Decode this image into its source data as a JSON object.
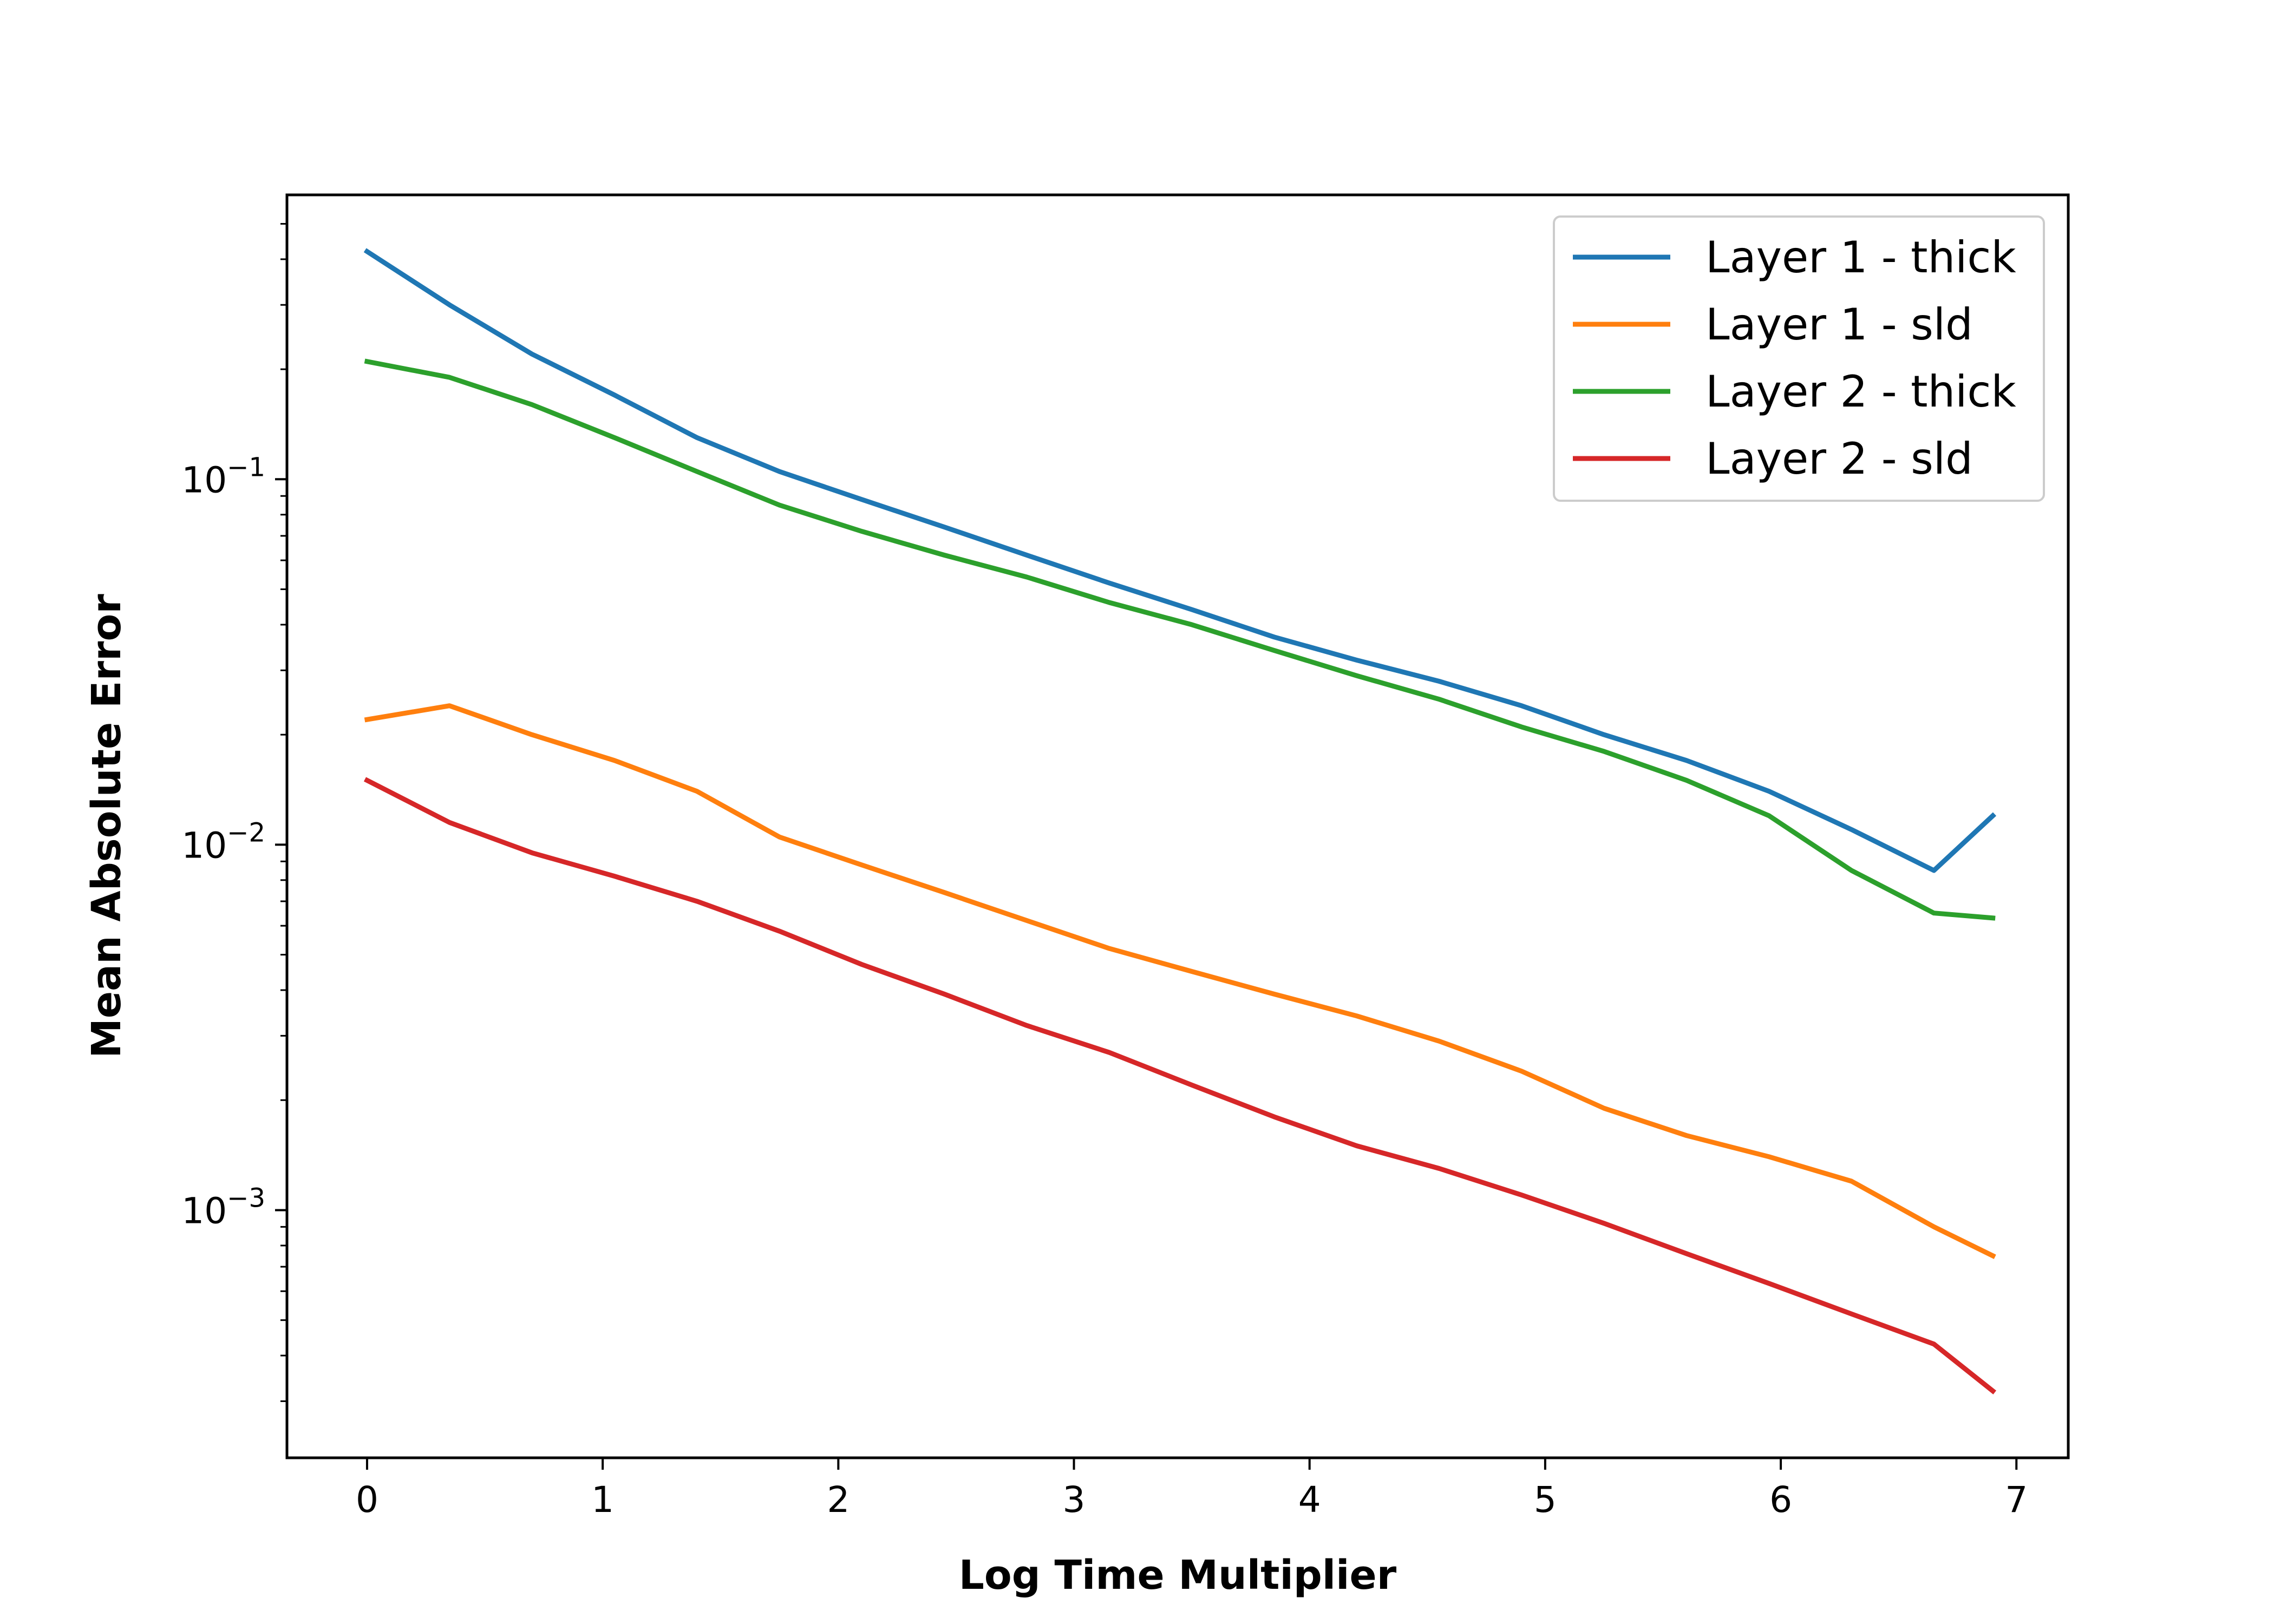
{
  "chart_data": {
    "type": "line",
    "title": "",
    "xlabel": "Log Time Multiplier",
    "ylabel": "Mean Absolute Error",
    "xlim": [
      -0.34,
      7.22
    ],
    "ylim": [
      0.00021,
      0.6
    ],
    "yscale": "log",
    "x_ticks": [
      "0",
      "1",
      "2",
      "3",
      "4",
      "5",
      "6",
      "7"
    ],
    "y_ticks": [
      {
        "base": "10",
        "exp": "−1"
      },
      {
        "base": "10",
        "exp": "−2"
      },
      {
        "base": "10",
        "exp": "−3"
      }
    ],
    "grid": false,
    "legend_position": "top-right",
    "x": [
      0.0,
      0.35,
      0.7,
      1.05,
      1.4,
      1.75,
      2.1,
      2.45,
      2.8,
      3.15,
      3.5,
      3.85,
      4.2,
      4.55,
      4.9,
      5.25,
      5.6,
      5.95,
      6.3,
      6.65,
      6.9
    ],
    "series": [
      {
        "name": "Layer 1 - thick",
        "color": "#1f77b4",
        "values": [
          0.42,
          0.3,
          0.22,
          0.17,
          0.13,
          0.105,
          0.088,
          0.074,
          0.062,
          0.052,
          0.044,
          0.037,
          0.032,
          0.028,
          0.024,
          0.02,
          0.017,
          0.014,
          0.011,
          0.0085,
          0.012
        ]
      },
      {
        "name": "Layer 1 - sld",
        "color": "#ff7f0e",
        "values": [
          0.022,
          0.024,
          0.02,
          0.017,
          0.014,
          0.0105,
          0.0088,
          0.0074,
          0.0062,
          0.0052,
          0.0045,
          0.0039,
          0.0034,
          0.0029,
          0.0024,
          0.0019,
          0.0016,
          0.0014,
          0.0012,
          0.0009,
          0.00075
        ]
      },
      {
        "name": "Layer 2 - thick",
        "color": "#2ca02c",
        "values": [
          0.21,
          0.19,
          0.16,
          0.13,
          0.105,
          0.085,
          0.072,
          0.062,
          0.054,
          0.046,
          0.04,
          0.034,
          0.029,
          0.025,
          0.021,
          0.018,
          0.015,
          0.012,
          0.0085,
          0.0065,
          0.0063
        ]
      },
      {
        "name": "Layer 2 - sld",
        "color": "#d62728",
        "values": [
          0.015,
          0.0115,
          0.0095,
          0.0082,
          0.007,
          0.0058,
          0.0047,
          0.0039,
          0.0032,
          0.0027,
          0.0022,
          0.0018,
          0.0015,
          0.0013,
          0.0011,
          0.00092,
          0.00076,
          0.00063,
          0.00052,
          0.00043,
          0.00032
        ]
      }
    ]
  }
}
